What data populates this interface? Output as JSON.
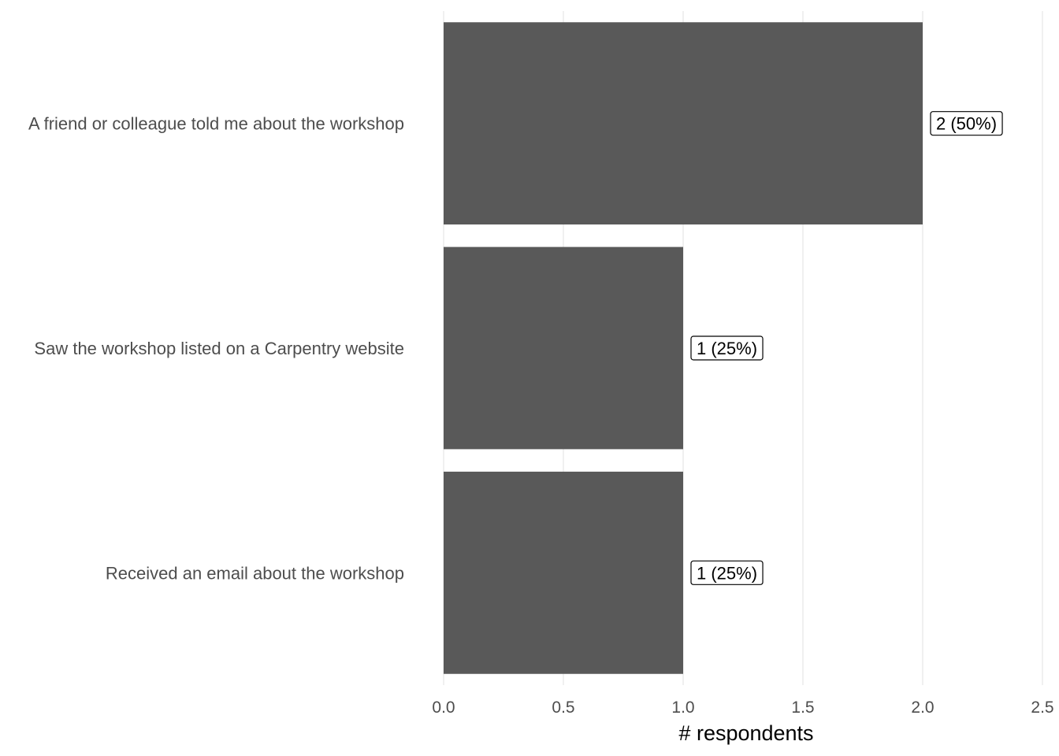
{
  "chart_data": {
    "type": "bar",
    "orientation": "horizontal",
    "categories": [
      "A friend or colleague told me about the workshop",
      "Saw the workshop listed on a Carpentry website",
      "Received an email about the workshop"
    ],
    "values": [
      2,
      1,
      1
    ],
    "data_labels": [
      "2 (50%)",
      "1 (25%)",
      "1 (25%)"
    ],
    "xlabel": "# respondents",
    "ylabel": "",
    "title": "",
    "xlim": [
      0,
      2.5
    ],
    "x_ticks": [
      0.0,
      0.5,
      1.0,
      1.5,
      2.0,
      2.5
    ],
    "x_tick_labels": [
      "0.0",
      "0.5",
      "1.0",
      "1.5",
      "2.0",
      "2.5"
    ],
    "grid": "vertical-major",
    "legend": "none",
    "colors": {
      "bar": "#595959",
      "grid": "#ebebeb",
      "text": "#4d4d4d",
      "background": "#ffffff"
    }
  }
}
